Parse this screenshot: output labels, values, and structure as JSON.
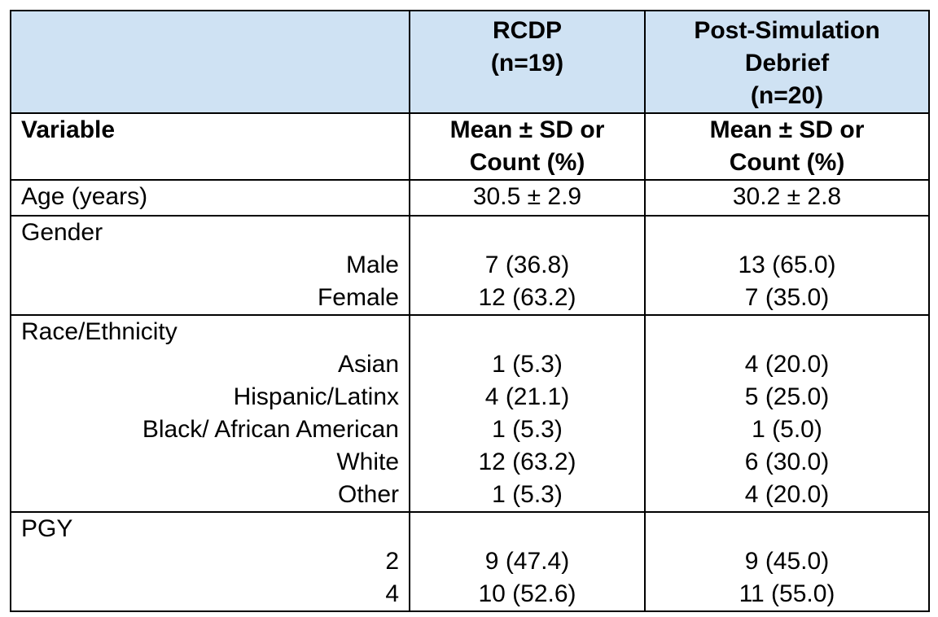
{
  "header": {
    "groups": [
      {
        "lines": [
          "RCDP",
          "(n=19)"
        ]
      },
      {
        "lines": [
          "Post-Simulation",
          "Debrief",
          "(n=20)"
        ]
      }
    ],
    "variable_label": "Variable",
    "stat_label_lines": [
      "Mean ± SD or",
      "Count (%)"
    ]
  },
  "rows": [
    {
      "label": "Age (years)",
      "rcdp": "30.5 ± 2.9",
      "debrief": "30.2 ± 2.8"
    },
    {
      "section": "Gender",
      "items": [
        {
          "label": "Male",
          "rcdp": "7 (36.8)",
          "debrief": "13 (65.0)"
        },
        {
          "label": "Female",
          "rcdp": "12 (63.2)",
          "debrief": "7 (35.0)"
        }
      ]
    },
    {
      "section": "Race/Ethnicity",
      "items": [
        {
          "label": "Asian",
          "rcdp": "1 (5.3)",
          "debrief": "4 (20.0)"
        },
        {
          "label": "Hispanic/Latinx",
          "rcdp": "4 (21.1)",
          "debrief": "5 (25.0)"
        },
        {
          "label": "Black/ African American",
          "rcdp": "1 (5.3)",
          "debrief": "1 (5.0)"
        },
        {
          "label": "White",
          "rcdp": "12 (63.2)",
          "debrief": "6 (30.0)"
        },
        {
          "label": "Other",
          "rcdp": "1 (5.3)",
          "debrief": "4 (20.0)"
        }
      ]
    },
    {
      "section": "PGY",
      "items": [
        {
          "label": "2",
          "rcdp": "9 (47.4)",
          "debrief": "9 (45.0)"
        },
        {
          "label": "4",
          "rcdp": "10 (52.6)",
          "debrief": "11 (55.0)"
        }
      ]
    }
  ],
  "colors": {
    "header_background": "#cfe2f3",
    "border": "#000000",
    "text": "#000000"
  }
}
